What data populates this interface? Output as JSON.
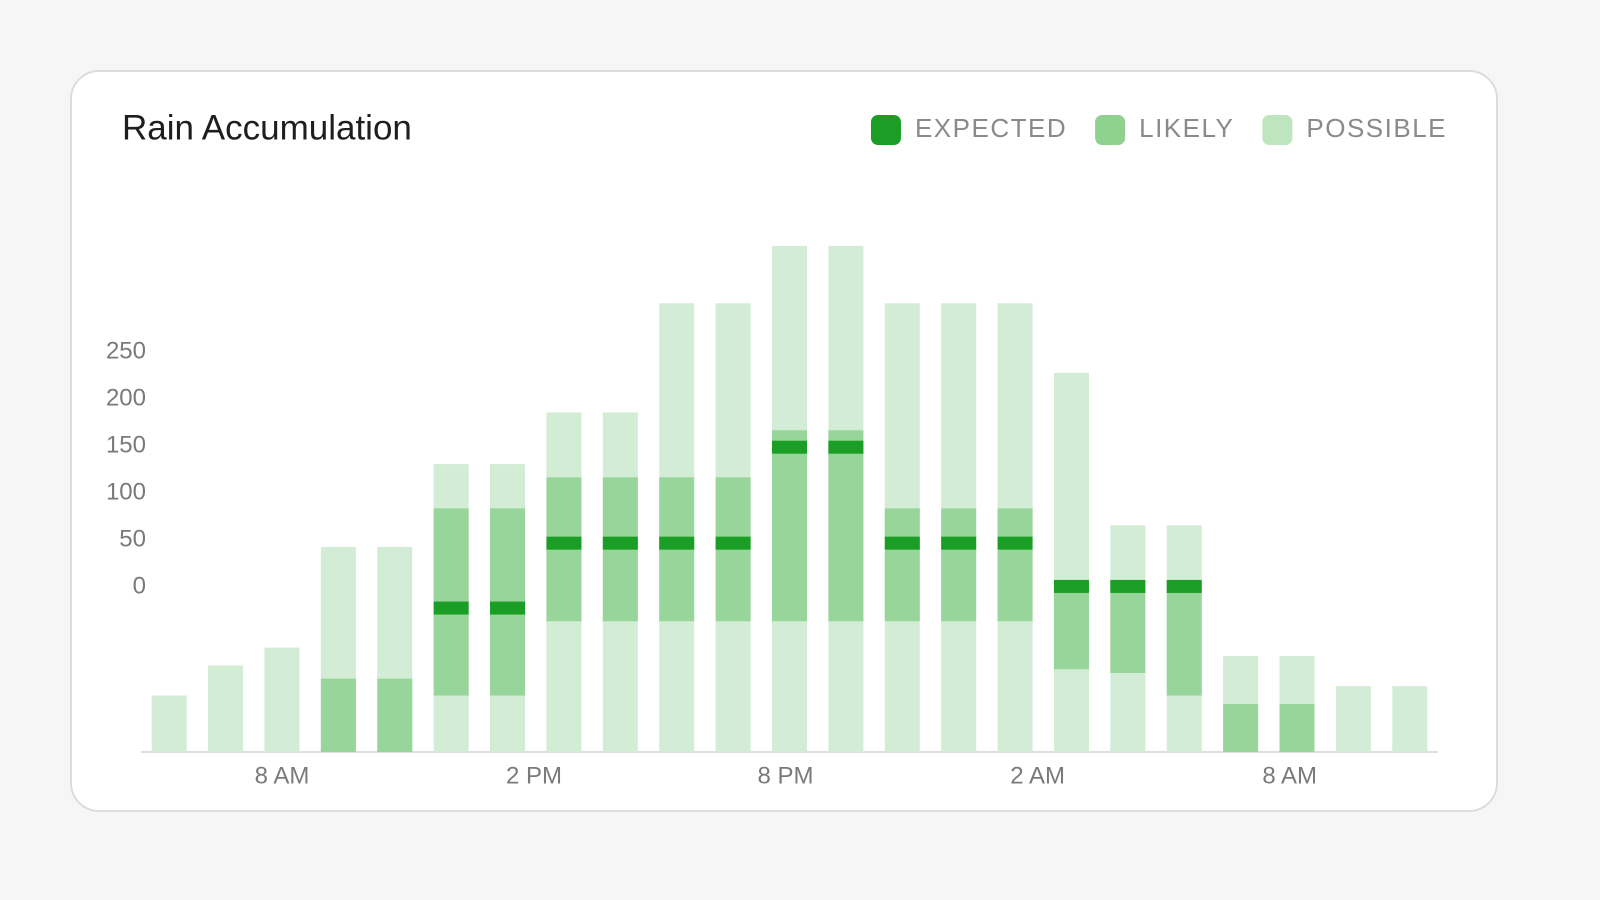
{
  "chart_data": {
    "type": "range-bar",
    "title": "Rain Accumulation",
    "x": [
      0,
      1,
      2,
      3,
      4,
      5,
      6,
      7,
      8,
      9,
      10,
      11,
      12,
      13,
      14,
      15,
      16,
      17,
      18,
      19,
      20,
      21,
      22
    ],
    "xlim": [
      -0.5,
      22.5
    ],
    "xticks": [
      {
        "value": 2,
        "label": "8 AM"
      },
      {
        "value": 6.47,
        "label": "2 PM"
      },
      {
        "value": 10.93,
        "label": "8 PM"
      },
      {
        "value": 15.4,
        "label": "2 AM"
      },
      {
        "value": 19.87,
        "label": "8 AM"
      }
    ],
    "ylim": [
      -175,
      365
    ],
    "yticks": [
      0,
      50,
      100,
      150,
      200,
      250
    ],
    "series": [
      {
        "name": "EXPECTED",
        "color": "#1a9e25",
        "legend_color": "#1a9e25",
        "values": [
          null,
          null,
          null,
          null,
          null,
          -22,
          -22,
          47,
          47,
          47,
          47,
          149,
          149,
          47,
          47,
          47,
          1,
          1,
          1,
          null,
          null,
          null,
          null
        ]
      },
      {
        "name": "LIKELY",
        "color": "#98d59a",
        "legend_color": "#8fd18f",
        "values": [
          null,
          null,
          null,
          [
            -175,
            -97
          ],
          [
            -175,
            -97
          ],
          [
            -115,
            84
          ],
          [
            -115,
            84
          ],
          [
            -36,
            117
          ],
          [
            -36,
            117
          ],
          [
            -36,
            117
          ],
          [
            -36,
            117
          ],
          [
            -36,
            167
          ],
          [
            -36,
            167
          ],
          [
            -36,
            84
          ],
          [
            -36,
            84
          ],
          [
            -36,
            84
          ],
          [
            -87,
            7
          ],
          [
            -91,
            7
          ],
          [
            -115,
            7
          ],
          [
            -175,
            -124
          ],
          [
            -175,
            -124
          ],
          null,
          null
        ]
      },
      {
        "name": "POSSIBLE",
        "color": "#d3ecd5",
        "legend_color": "#bde5be",
        "values": [
          -115,
          -83,
          -64,
          43,
          43,
          131,
          131,
          186,
          186,
          302,
          302,
          363,
          363,
          302,
          302,
          302,
          228,
          66,
          66,
          -73,
          -73,
          -105,
          -105
        ]
      }
    ]
  }
}
